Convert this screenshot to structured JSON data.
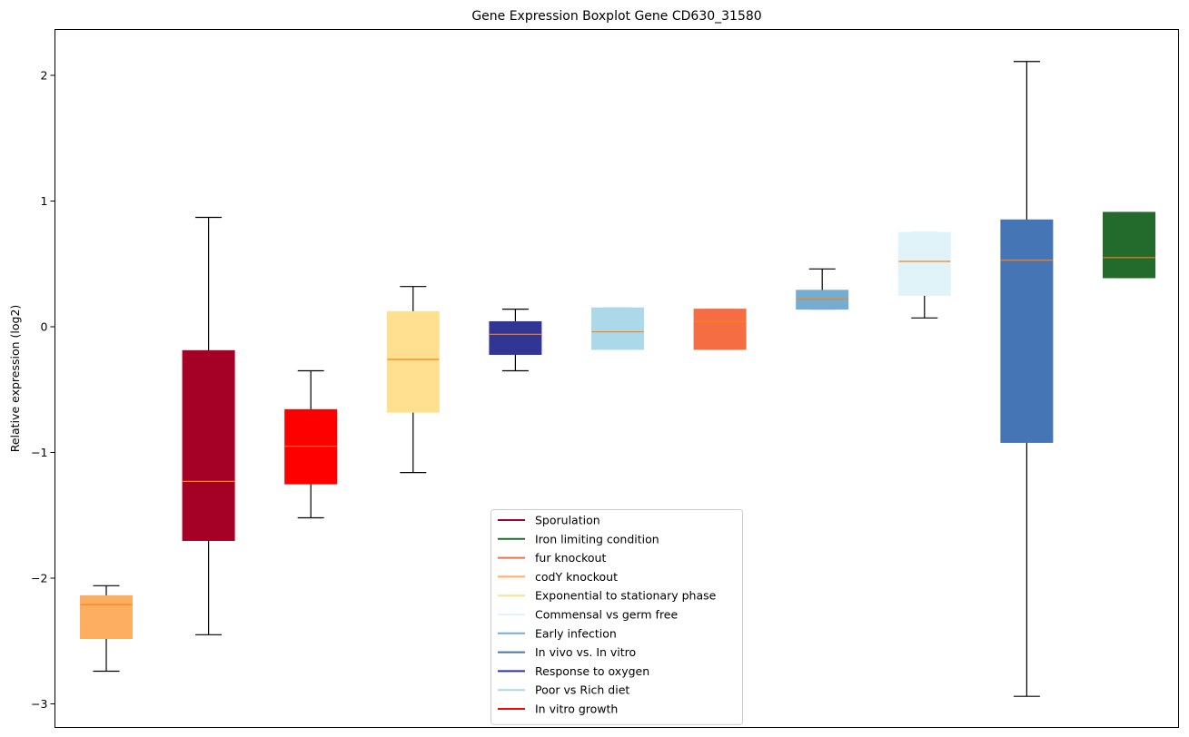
{
  "chart_data": {
    "type": "boxplot",
    "title": "Gene Expression Boxplot Gene CD630_31580",
    "xlabel": "",
    "ylabel": "Relative expression (log2)",
    "ylim": [
      -3.2,
      2.35
    ],
    "yticks": [
      -3,
      -2,
      -1,
      0,
      1,
      2
    ],
    "ytick_labels": [
      "−3",
      "−2",
      "−1",
      "0",
      "1",
      "2"
    ],
    "grid": false,
    "legend_position": "lower-center",
    "median_color": "#ff7f0e",
    "boxes": [
      {
        "name": "codY knockout",
        "color": "#fdae61",
        "whisker_low": -2.74,
        "q1": -2.48,
        "median": -2.21,
        "q3": -2.14,
        "whisker_high": -2.06
      },
      {
        "name": "Sporulation",
        "color": "#a50026",
        "whisker_low": -2.45,
        "q1": -1.7,
        "median": -1.23,
        "q3": -0.19,
        "whisker_high": 0.87
      },
      {
        "name": "In vitro growth",
        "color": "#ff0000",
        "whisker_low": -1.52,
        "q1": -1.25,
        "median": -0.95,
        "q3": -0.66,
        "whisker_high": -0.35
      },
      {
        "name": "Exponential to stationary phase",
        "color": "#fee090",
        "whisker_low": -1.16,
        "q1": -0.68,
        "median": -0.26,
        "q3": 0.12,
        "whisker_high": 0.32
      },
      {
        "name": "Response to oxygen",
        "color": "#313695",
        "whisker_low": -0.35,
        "q1": -0.22,
        "median": -0.06,
        "q3": 0.04,
        "whisker_high": 0.14
      },
      {
        "name": "Poor vs Rich diet",
        "color": "#abd9e9",
        "whisker_low": -0.18,
        "q1": -0.18,
        "median": -0.04,
        "q3": 0.15,
        "whisker_high": 0.15
      },
      {
        "name": "fur knockout",
        "color": "#f46d43",
        "whisker_low": -0.18,
        "q1": -0.18,
        "median": 0.04,
        "q3": 0.14,
        "whisker_high": 0.14
      },
      {
        "name": "Early infection",
        "color": "#74add1",
        "whisker_low": 0.14,
        "q1": 0.14,
        "median": 0.22,
        "q3": 0.29,
        "whisker_high": 0.46
      },
      {
        "name": "Commensal vs germ free",
        "color": "#e0f3f8",
        "whisker_low": 0.07,
        "q1": 0.25,
        "median": 0.52,
        "q3": 0.75,
        "whisker_high": 0.75
      },
      {
        "name": "In vivo vs. In vitro",
        "color": "#4575b4",
        "whisker_low": -2.94,
        "q1": -0.92,
        "median": 0.53,
        "q3": 0.85,
        "whisker_high": 2.11
      },
      {
        "name": "Iron limiting condition",
        "color": "#226b2c",
        "whisker_low": 0.39,
        "q1": 0.39,
        "median": 0.55,
        "q3": 0.91,
        "whisker_high": 0.91
      }
    ],
    "legend": [
      {
        "label": "Sporulation",
        "color": "#a50026"
      },
      {
        "label": "Iron limiting condition",
        "color": "#226b2c"
      },
      {
        "label": "fur knockout",
        "color": "#f46d43"
      },
      {
        "label": "codY knockout",
        "color": "#fdae61"
      },
      {
        "label": "Exponential to stationary phase",
        "color": "#fee090"
      },
      {
        "label": "Commensal vs germ free",
        "color": "#e0f3f8"
      },
      {
        "label": "Early infection",
        "color": "#74add1"
      },
      {
        "label": "In vivo vs. In vitro",
        "color": "#4575b4"
      },
      {
        "label": "Response to oxygen",
        "color": "#313695"
      },
      {
        "label": "Poor vs Rich diet",
        "color": "#abd9e9"
      },
      {
        "label": "In vitro growth",
        "color": "#ff0000"
      }
    ]
  }
}
